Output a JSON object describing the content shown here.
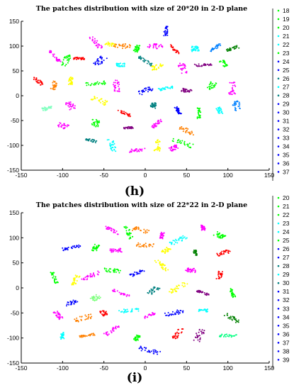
{
  "chart_data": [
    {
      "type": "scatter",
      "title": "The patches distribution with size of 20*20 in 2-D plane",
      "panel_label": "(h)",
      "xlim": [
        -150,
        150
      ],
      "ylim": [
        -150,
        150
      ],
      "xticks": [
        "-150",
        "-100",
        "-50",
        "0",
        "50",
        "100",
        "150"
      ],
      "yticks": [
        "150",
        "100",
        "50",
        "0",
        "-50",
        "-100",
        "-150"
      ],
      "legend": [
        "18",
        "19",
        "20",
        "21",
        "22",
        "23",
        "24",
        "25",
        "26",
        "27",
        "28",
        "29",
        "30",
        "31",
        "32",
        "33",
        "34",
        "35",
        "36",
        "37"
      ],
      "legend_placement": "right",
      "clusters": [
        {
          "x": 25,
          "y": 130,
          "c": "#0000ff"
        },
        {
          "x": -60,
          "y": 108,
          "c": "#ff00ff"
        },
        {
          "x": -42,
          "y": 103,
          "c": "#ffff00"
        },
        {
          "x": -28,
          "y": 100,
          "c": "#ff8000"
        },
        {
          "x": -10,
          "y": 95,
          "c": "#00ff00"
        },
        {
          "x": 12,
          "y": 100,
          "c": "#ff00ff"
        },
        {
          "x": 35,
          "y": 93,
          "c": "#ff0000"
        },
        {
          "x": 60,
          "y": 95,
          "c": "#00ffff"
        },
        {
          "x": 85,
          "y": 97,
          "c": "#0080ff"
        },
        {
          "x": 105,
          "y": 95,
          "c": "#008000"
        },
        {
          "x": -110,
          "y": 80,
          "c": "#ff00ff"
        },
        {
          "x": -95,
          "y": 72,
          "c": "#00ff00"
        },
        {
          "x": -80,
          "y": 75,
          "c": "#ff0000"
        },
        {
          "x": -55,
          "y": 70,
          "c": "#0000ff"
        },
        {
          "x": -30,
          "y": 62,
          "c": "#00ffff"
        },
        {
          "x": 0,
          "y": 70,
          "c": "#008080"
        },
        {
          "x": 15,
          "y": 58,
          "c": "#ffff00"
        },
        {
          "x": 45,
          "y": 55,
          "c": "#ff00ff"
        },
        {
          "x": 70,
          "y": 62,
          "c": "#800080"
        },
        {
          "x": 95,
          "y": 65,
          "c": "#00ff00"
        },
        {
          "x": -130,
          "y": 30,
          "c": "#ff0000"
        },
        {
          "x": -110,
          "y": 20,
          "c": "#ff8000"
        },
        {
          "x": -90,
          "y": 30,
          "c": "#ffff00"
        },
        {
          "x": -60,
          "y": 25,
          "c": "#00ff00"
        },
        {
          "x": -35,
          "y": 20,
          "c": "#ff00ff"
        },
        {
          "x": 0,
          "y": 10,
          "c": "#0000ff"
        },
        {
          "x": 25,
          "y": 15,
          "c": "#00ffff"
        },
        {
          "x": 50,
          "y": 10,
          "c": "#800080"
        },
        {
          "x": 80,
          "y": 20,
          "c": "#00ff00"
        },
        {
          "x": 105,
          "y": 15,
          "c": "#ff00ff"
        },
        {
          "x": -118,
          "y": -25,
          "c": "#80ffbf"
        },
        {
          "x": -90,
          "y": -20,
          "c": "#ff00ff"
        },
        {
          "x": -55,
          "y": -10,
          "c": "#ffff00"
        },
        {
          "x": -25,
          "y": -35,
          "c": "#ff0000"
        },
        {
          "x": 10,
          "y": -20,
          "c": "#008080"
        },
        {
          "x": 40,
          "y": -30,
          "c": "#0000ff"
        },
        {
          "x": 65,
          "y": -35,
          "c": "#00ff00"
        },
        {
          "x": 90,
          "y": -30,
          "c": "#00ffff"
        },
        {
          "x": 110,
          "y": -20,
          "c": "#0080ff"
        },
        {
          "x": -100,
          "y": -60,
          "c": "#ff00ff"
        },
        {
          "x": -60,
          "y": -55,
          "c": "#00ff00"
        },
        {
          "x": -20,
          "y": -65,
          "c": "#800080"
        },
        {
          "x": 15,
          "y": -55,
          "c": "#ff00ff"
        },
        {
          "x": 50,
          "y": -70,
          "c": "#ff8000"
        },
        {
          "x": -65,
          "y": -90,
          "c": "#008080"
        },
        {
          "x": -40,
          "y": -100,
          "c": "#00ffff"
        },
        {
          "x": -10,
          "y": -110,
          "c": "#ff00ff"
        },
        {
          "x": 15,
          "y": -100,
          "c": "#ffff00"
        },
        {
          "x": 35,
          "y": -105,
          "c": "#ff00ff"
        },
        {
          "x": 45,
          "y": -95,
          "c": "#00ff00"
        }
      ]
    },
    {
      "type": "scatter",
      "title": "The patches distribution with size of 22*22 in 2-D plane",
      "panel_label": "(i)",
      "xlim": [
        -150,
        150
      ],
      "ylim": [
        -150,
        150
      ],
      "xticks": [
        "-150",
        "-100",
        "-50",
        "0",
        "50",
        "100",
        "150"
      ],
      "yticks": [
        "150",
        "100",
        "50",
        "0",
        "-50",
        "-100",
        "-150"
      ],
      "legend": [
        "20",
        "21",
        "22",
        "23",
        "24",
        "25",
        "26",
        "27",
        "28",
        "29",
        "30",
        "31",
        "32",
        "33",
        "34",
        "35",
        "36",
        "37",
        "38",
        "39"
      ],
      "legend_placement": "right",
      "clusters": [
        {
          "x": 70,
          "y": 120,
          "c": "#ff00ff"
        },
        {
          "x": 90,
          "y": 105,
          "c": "#00ff00"
        },
        {
          "x": -40,
          "y": 115,
          "c": "#ff00ff"
        },
        {
          "x": -20,
          "y": 110,
          "c": "#00ff00"
        },
        {
          "x": -5,
          "y": 115,
          "c": "#ff8000"
        },
        {
          "x": 20,
          "y": 105,
          "c": "#ff00ff"
        },
        {
          "x": 40,
          "y": 95,
          "c": "#00ffff"
        },
        {
          "x": -90,
          "y": 80,
          "c": "#0000ff"
        },
        {
          "x": -60,
          "y": 80,
          "c": "#00ff00"
        },
        {
          "x": -35,
          "y": 75,
          "c": "#ff00ff"
        },
        {
          "x": 0,
          "y": 85,
          "c": "#ff8000"
        },
        {
          "x": 25,
          "y": 75,
          "c": "#ffff00"
        },
        {
          "x": 60,
          "y": 70,
          "c": "#008000"
        },
        {
          "x": 95,
          "y": 70,
          "c": "#ff0000"
        },
        {
          "x": -110,
          "y": 20,
          "c": "#00ff00"
        },
        {
          "x": -85,
          "y": 15,
          "c": "#ffff00"
        },
        {
          "x": -65,
          "y": 25,
          "c": "#ff00ff"
        },
        {
          "x": -40,
          "y": 35,
          "c": "#00ff00"
        },
        {
          "x": -10,
          "y": 30,
          "c": "#0000ff"
        },
        {
          "x": 20,
          "y": 45,
          "c": "#ffff00"
        },
        {
          "x": 55,
          "y": 35,
          "c": "#ff00ff"
        },
        {
          "x": 90,
          "y": 25,
          "c": "#ff0000"
        },
        {
          "x": -90,
          "y": -30,
          "c": "#0000ff"
        },
        {
          "x": -60,
          "y": -20,
          "c": "#80ff80"
        },
        {
          "x": -30,
          "y": -10,
          "c": "#ff00ff"
        },
        {
          "x": 10,
          "y": -5,
          "c": "#008080"
        },
        {
          "x": 40,
          "y": 0,
          "c": "#ffff00"
        },
        {
          "x": 70,
          "y": -10,
          "c": "#800080"
        },
        {
          "x": 105,
          "y": -10,
          "c": "#00ff00"
        },
        {
          "x": -105,
          "y": -55,
          "c": "#ff00ff"
        },
        {
          "x": -75,
          "y": -60,
          "c": "#ff8000"
        },
        {
          "x": -50,
          "y": -50,
          "c": "#ff0000"
        },
        {
          "x": -20,
          "y": -45,
          "c": "#00ffff"
        },
        {
          "x": 5,
          "y": -55,
          "c": "#ff00ff"
        },
        {
          "x": 35,
          "y": -50,
          "c": "#0000ff"
        },
        {
          "x": 70,
          "y": -45,
          "c": "#00ffff"
        },
        {
          "x": 105,
          "y": -60,
          "c": "#008000"
        },
        {
          "x": -100,
          "y": -95,
          "c": "#00ffff"
        },
        {
          "x": -70,
          "y": -95,
          "c": "#ff8000"
        },
        {
          "x": -40,
          "y": -85,
          "c": "#ff00ff"
        },
        {
          "x": -10,
          "y": -100,
          "c": "#00ff00"
        },
        {
          "x": 5,
          "y": -125,
          "c": "#0000ff"
        },
        {
          "x": 40,
          "y": -90,
          "c": "#ff0000"
        },
        {
          "x": 65,
          "y": -95,
          "c": "#800080"
        },
        {
          "x": 100,
          "y": -95,
          "c": "#00ff80"
        }
      ]
    }
  ]
}
